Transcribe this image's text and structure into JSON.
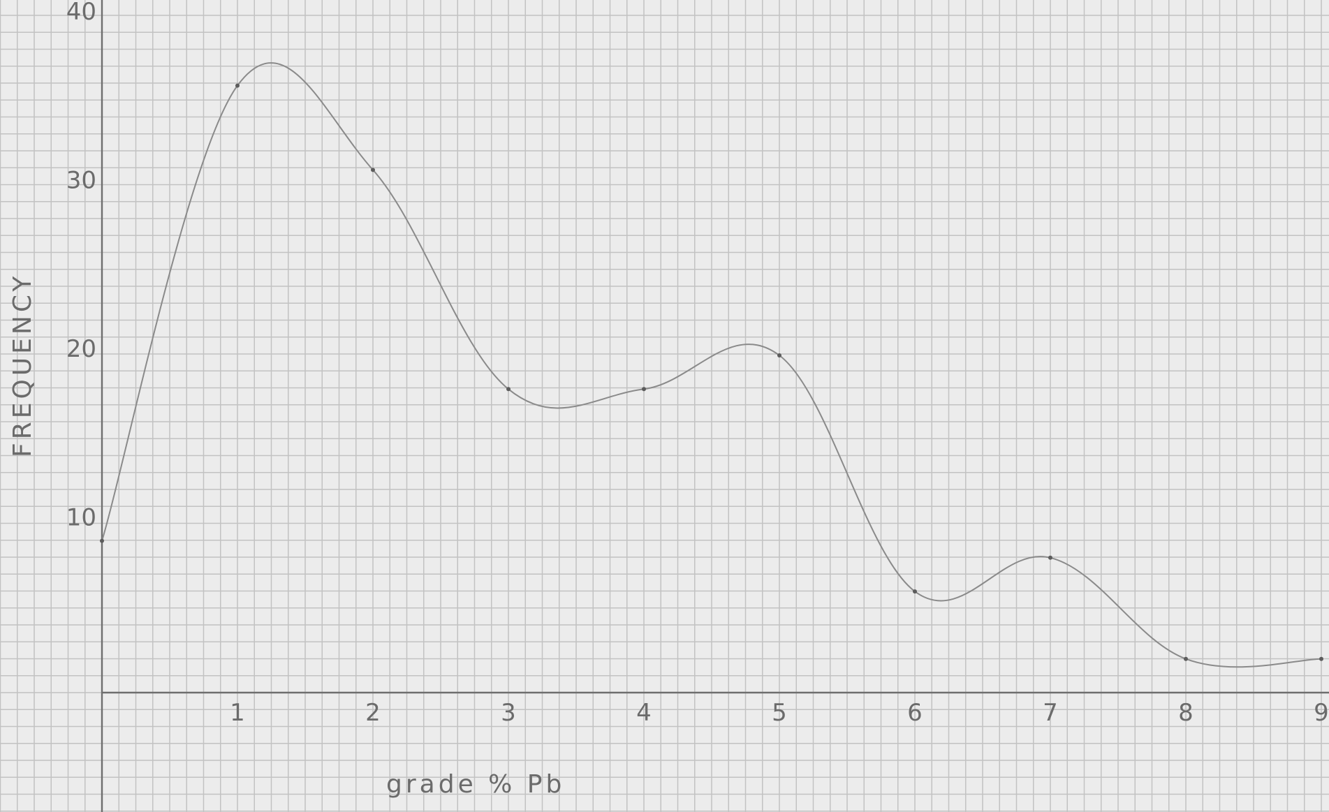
{
  "chart_data": {
    "type": "line",
    "xlabel": "grade % Pb",
    "ylabel": "FREQUENCY",
    "x_ticks": [
      "1",
      "2",
      "3",
      "4",
      "5",
      "6",
      "7",
      "8",
      "9"
    ],
    "y_ticks": [
      "10",
      "20",
      "30",
      "40"
    ],
    "xlim": [
      0,
      9
    ],
    "ylim": [
      -7,
      41
    ],
    "grid": true,
    "series": [
      {
        "x": [
          0,
          1,
          2,
          3,
          4,
          5,
          6,
          7,
          8,
          9
        ],
        "values": [
          9,
          36,
          31,
          18,
          18,
          20,
          6,
          8,
          2,
          2
        ]
      }
    ]
  },
  "colors": {
    "paper": "#ececec",
    "grid": "#c2c2c2",
    "pencil": "#6e6e6e"
  }
}
